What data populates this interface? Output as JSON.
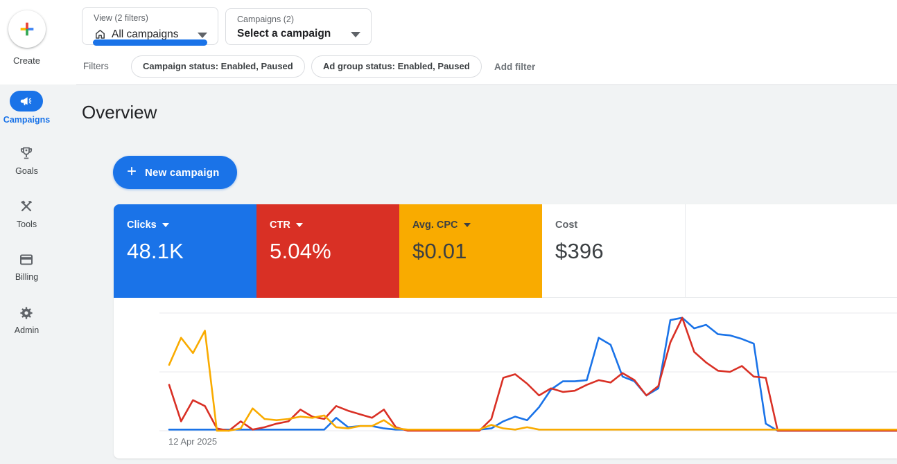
{
  "colors": {
    "blue": "#1a73e8",
    "red": "#d93025",
    "yellow": "#f9ab00",
    "text_dark": "#3c4043",
    "text_gray": "#5f6368",
    "content_bg": "#f1f3f4",
    "border": "#dadce0",
    "gridline": "#e8eaed"
  },
  "sidebar": {
    "create": {
      "label": "Create"
    },
    "items": [
      {
        "label": "Campaigns",
        "icon": "megaphone-icon",
        "active": true
      },
      {
        "label": "Goals",
        "icon": "trophy-icon",
        "active": false
      },
      {
        "label": "Tools",
        "icon": "hammer-wrench-icon",
        "active": false
      },
      {
        "label": "Billing",
        "icon": "credit-card-icon",
        "active": false
      },
      {
        "label": "Admin",
        "icon": "gear-icon",
        "active": false
      }
    ]
  },
  "header": {
    "view_selector": {
      "label": "View (2 filters)",
      "value": "All campaigns",
      "icon": "home-icon"
    },
    "campaign_selector": {
      "label": "Campaigns (2)",
      "value": "Select a campaign"
    },
    "filters": {
      "label": "Filters",
      "chips": [
        "Campaign status: Enabled, Paused",
        "Ad group status: Enabled, Paused"
      ],
      "add_label": "Add filter"
    }
  },
  "main": {
    "title": "Overview",
    "new_campaign_label": "New campaign",
    "plus_glyph": "+"
  },
  "scorecards": [
    {
      "label": "Clicks",
      "value": "48.1K",
      "bg": "#1a73e8",
      "label_color": "#ffffff",
      "value_color": "#ffffff",
      "caret": true
    },
    {
      "label": "CTR",
      "value": "5.04%",
      "bg": "#d93025",
      "label_color": "#ffffff",
      "value_color": "#ffffff",
      "caret": true
    },
    {
      "label": "Avg. CPC",
      "value": "$0.01",
      "bg": "#f9ab00",
      "label_color": "#3c4043",
      "value_color": "#3c4043",
      "caret": true
    },
    {
      "label": "Cost",
      "value": "$396",
      "bg": "#ffffff",
      "label_color": "#5f6368",
      "value_color": "#3c4043",
      "caret": false
    }
  ],
  "chart_data": {
    "type": "line",
    "x_first_tick_label": "12 Apr 2025",
    "x_points": 62,
    "ylim": [
      0,
      100
    ],
    "grid": "horizontal, 3 lines (0, 50, 100)",
    "legend": "none (series colored to match scorecards)",
    "series": [
      {
        "name": "Clicks",
        "color": "#1a73e8",
        "values": [
          1,
          1,
          1,
          1,
          1,
          1,
          1,
          1,
          1,
          1,
          1,
          1,
          1,
          1,
          11,
          3,
          4,
          4,
          2,
          1,
          1,
          1,
          1,
          1,
          1,
          1,
          1,
          2,
          8,
          12,
          9,
          20,
          35,
          42,
          42,
          43,
          79,
          73,
          46,
          42,
          30,
          36,
          94,
          96,
          87,
          90,
          82,
          81,
          78,
          74,
          6,
          0,
          0,
          0,
          0,
          0,
          0,
          0,
          0,
          0,
          0,
          0
        ]
      },
      {
        "name": "CTR",
        "color": "#d93025",
        "values": [
          39,
          8,
          26,
          21,
          2,
          0,
          8,
          1,
          3,
          6,
          8,
          18,
          12,
          10,
          21,
          17,
          14,
          11,
          18,
          3,
          0,
          0,
          0,
          0,
          0,
          0,
          0,
          10,
          45,
          48,
          40,
          30,
          36,
          33,
          34,
          39,
          43,
          41,
          49,
          43,
          30,
          38,
          75,
          96,
          67,
          58,
          51,
          50,
          55,
          46,
          45,
          0,
          0,
          0,
          0,
          0,
          0,
          0,
          0,
          0,
          0,
          0
        ]
      },
      {
        "name": "Avg. CPC",
        "color": "#f9ab00",
        "values": [
          56,
          79,
          66,
          85,
          0,
          0,
          2,
          19,
          10,
          9,
          10,
          12,
          11,
          13,
          3,
          2,
          4,
          4,
          9,
          2,
          1,
          1,
          1,
          1,
          1,
          1,
          1,
          5,
          2,
          1,
          3,
          1,
          1,
          1,
          1,
          1,
          1,
          1,
          1,
          1,
          1,
          1,
          1,
          1,
          1,
          1,
          1,
          1,
          1,
          1,
          1,
          1,
          1,
          1,
          1,
          1,
          1,
          1,
          1,
          1,
          1,
          1
        ]
      }
    ]
  }
}
